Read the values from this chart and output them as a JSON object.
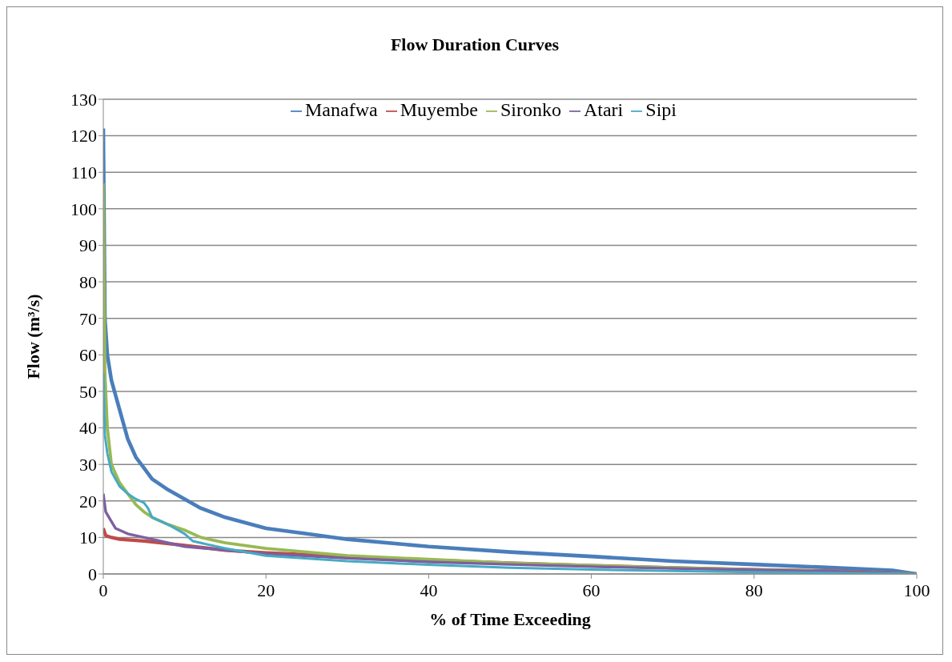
{
  "chart_data": {
    "type": "line",
    "title": "Flow Duration Curves",
    "xlabel": "% of Time Exceeding",
    "ylabel": "Flow (m³/s)",
    "xlim": [
      0,
      100
    ],
    "xticks": [
      0,
      20,
      40,
      60,
      80,
      100
    ],
    "ylim": [
      0,
      130
    ],
    "yticks": [
      0,
      10,
      20,
      30,
      40,
      50,
      60,
      70,
      80,
      90,
      100,
      110,
      120,
      130
    ],
    "grid": "y",
    "legend": "top",
    "marker": "none",
    "line_style": "solid",
    "series": [
      {
        "name": "Manafwa",
        "color": "#4a7ebb",
        "x": [
          0,
          0.2,
          0.5,
          1,
          2,
          3,
          4,
          5,
          6,
          8,
          10,
          12,
          15,
          20,
          25,
          30,
          40,
          50,
          60,
          70,
          80,
          90,
          97,
          100
        ],
        "values": [
          122,
          70,
          60,
          53,
          45,
          37,
          32,
          29,
          26,
          23,
          20.5,
          18,
          15.5,
          12.5,
          11,
          9.5,
          7.5,
          6,
          4.8,
          3.5,
          2.6,
          1.7,
          1,
          0
        ]
      },
      {
        "name": "Muyembe",
        "color": "#be4b48",
        "x": [
          0,
          0.3,
          1,
          2,
          5,
          8,
          10,
          15,
          20,
          30,
          40,
          50,
          60,
          70,
          80,
          90,
          100
        ],
        "values": [
          12.5,
          10.5,
          10,
          9.5,
          9,
          8.3,
          7.8,
          6.5,
          5.8,
          4.8,
          3.8,
          3,
          2.3,
          1.7,
          1.2,
          0.8,
          0
        ]
      },
      {
        "name": "Sironko",
        "color": "#98b954",
        "x": [
          0,
          0.2,
          0.5,
          1,
          2,
          3,
          4,
          5,
          6,
          8,
          10,
          12,
          15,
          20,
          30,
          40,
          50,
          60,
          70,
          80,
          90,
          100
        ],
        "values": [
          107,
          55,
          40,
          30,
          25,
          22,
          19,
          17,
          15.5,
          13.5,
          12,
          10,
          8.5,
          7,
          5,
          4,
          3,
          2.3,
          1.7,
          1.2,
          0.7,
          0
        ]
      },
      {
        "name": "Atari",
        "color": "#7d60a0",
        "x": [
          0,
          0.3,
          0.7,
          1.5,
          3,
          5,
          8,
          10,
          15,
          20,
          30,
          40,
          50,
          60,
          70,
          80,
          90,
          100
        ],
        "values": [
          22,
          17,
          15.5,
          12.5,
          11,
          10,
          8.5,
          7.5,
          6.5,
          5.5,
          4.3,
          3.3,
          2.6,
          2,
          1.5,
          1.1,
          0.7,
          0
        ]
      },
      {
        "name": "Sipi",
        "color": "#46aac5",
        "x": [
          0,
          0.2,
          0.5,
          1,
          2,
          3,
          4,
          5,
          5.5,
          6,
          8,
          10,
          11,
          15,
          20,
          30,
          40,
          50,
          60,
          70,
          80,
          90,
          100
        ],
        "values": [
          55,
          38,
          33,
          28,
          24,
          22,
          20.5,
          19.5,
          18,
          15.5,
          13.5,
          11,
          9,
          7,
          5,
          3.5,
          2.5,
          1.7,
          1.2,
          0.8,
          0.5,
          0.3,
          0
        ]
      }
    ]
  }
}
